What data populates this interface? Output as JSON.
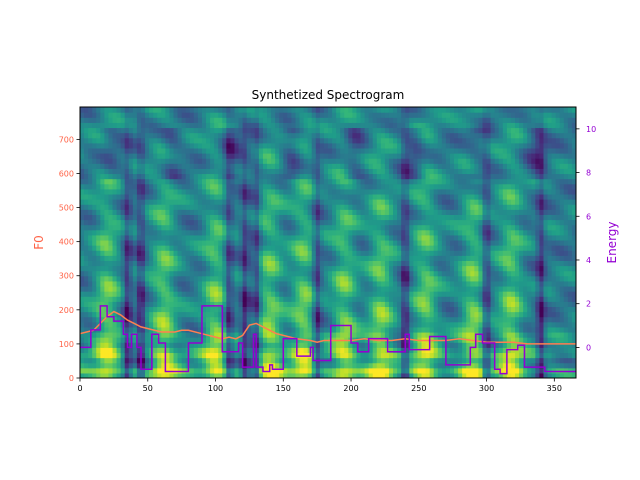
{
  "chart_data": {
    "type": "heatmap",
    "title": "Synthetized Spectrogram",
    "xlabel": "",
    "ylabel": "F0",
    "y2label": "Energy",
    "xlim": [
      0,
      366
    ],
    "ylim": [
      0,
      795
    ],
    "y2lim": [
      -1.4,
      11.0
    ],
    "xticks": [
      0,
      50,
      100,
      150,
      200,
      250,
      300,
      350
    ],
    "yticks": [
      0,
      100,
      200,
      300,
      400,
      500,
      600,
      700
    ],
    "y2ticks": [
      0,
      2,
      4,
      6,
      8,
      10
    ],
    "colors": {
      "f0": "#ff7f50",
      "energy": "#9400d3",
      "f0_tick": "#ff6347",
      "energy_tick": "#9400d3",
      "colormap": "viridis"
    },
    "grid": false,
    "series": [
      {
        "name": "F0",
        "axis": "left",
        "x": [
          0,
          10,
          20,
          25,
          30,
          35,
          40,
          45,
          55,
          60,
          70,
          75,
          80,
          90,
          100,
          105,
          110,
          115,
          120,
          125,
          130,
          135,
          140,
          145,
          150,
          160,
          170,
          175,
          180,
          200,
          210,
          220,
          230,
          240,
          250,
          260,
          270,
          280,
          290,
          300,
          310,
          320,
          330,
          340,
          350,
          366
        ],
        "values": [
          130,
          140,
          180,
          195,
          185,
          170,
          160,
          150,
          140,
          135,
          135,
          140,
          140,
          130,
          120,
          115,
          120,
          115,
          125,
          155,
          160,
          150,
          140,
          130,
          125,
          115,
          110,
          105,
          110,
          110,
          115,
          110,
          110,
          115,
          110,
          110,
          110,
          115,
          110,
          105,
          105,
          105,
          100,
          100,
          100,
          100
        ]
      },
      {
        "name": "Energy",
        "axis": "right",
        "x": [
          0,
          5,
          8,
          12,
          15,
          20,
          25,
          30,
          32,
          35,
          38,
          42,
          45,
          50,
          53,
          58,
          63,
          70,
          75,
          80,
          90,
          95,
          100,
          105,
          110,
          113,
          117,
          120,
          125,
          128,
          130,
          135,
          140,
          142,
          145,
          150,
          153,
          160,
          163,
          170,
          172,
          175,
          180,
          185,
          190,
          195,
          200,
          202,
          205,
          210,
          213,
          220,
          227,
          233,
          240,
          243,
          248,
          255,
          258,
          265,
          270,
          278,
          283,
          288,
          292,
          297,
          302,
          306,
          310,
          315,
          320,
          323,
          328,
          335,
          338,
          343,
          350,
          366
        ],
        "values": [
          0.0,
          0.0,
          0.8,
          0.8,
          1.9,
          1.4,
          1.2,
          1.2,
          0.6,
          0.0,
          0.6,
          0.0,
          -1.0,
          -1.0,
          0.6,
          0.2,
          -1.1,
          -1.1,
          -1.1,
          0.2,
          1.9,
          1.9,
          1.9,
          -0.2,
          -0.2,
          -0.2,
          0.2,
          -0.9,
          -0.9,
          0.6,
          -0.9,
          -1.1,
          -0.8,
          -1.0,
          -1.0,
          0.4,
          0.4,
          -0.4,
          -0.4,
          0.0,
          -0.6,
          -0.6,
          -0.6,
          1.0,
          1.0,
          1.0,
          0.2,
          0.2,
          -0.2,
          -0.2,
          0.4,
          0.4,
          -0.2,
          -0.2,
          0.6,
          -0.1,
          -0.1,
          -0.1,
          0.5,
          0.5,
          -0.8,
          -0.8,
          -0.8,
          0.0,
          0.6,
          0.2,
          0.2,
          -1.0,
          -1.2,
          -0.1,
          -0.1,
          0.1,
          -0.9,
          -0.9,
          -0.9,
          -1.1,
          -1.1,
          -1.1
        ]
      }
    ]
  }
}
